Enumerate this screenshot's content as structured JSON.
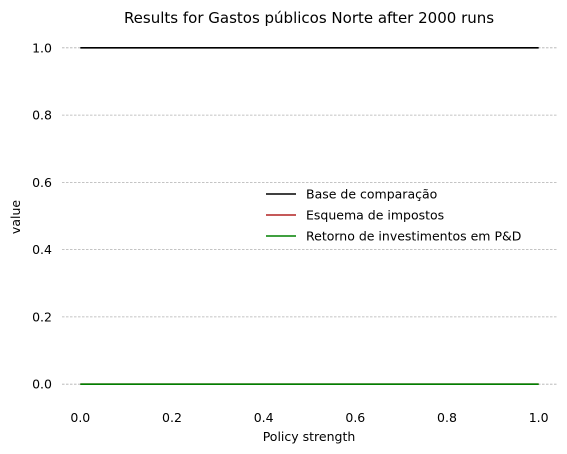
{
  "chart_data": {
    "type": "line",
    "title": "Results for Gastos públicos Norte after 2000 runs",
    "xlabel": "Policy strength",
    "ylabel": "value",
    "xlim": [
      -0.04,
      1.04
    ],
    "ylim": [
      -0.05,
      1.05
    ],
    "x_ticks": [
      0.0,
      0.2,
      0.4,
      0.6,
      0.8,
      1.0
    ],
    "x_tick_labels": [
      "0.0",
      "0.2",
      "0.4",
      "0.6",
      "0.8",
      "1.0"
    ],
    "y_ticks": [
      0.0,
      0.2,
      0.4,
      0.6,
      0.8,
      1.0
    ],
    "y_tick_labels": [
      "0.0",
      "0.2",
      "0.4",
      "0.6",
      "0.8",
      "1.0"
    ],
    "grid": "horizontal-dashed",
    "legend_position": "center-right",
    "x": [
      0.0,
      1.0
    ],
    "series": [
      {
        "name": "Base de comparação",
        "color": "#000000",
        "values": [
          1.0,
          1.0
        ]
      },
      {
        "name": "Esquema de impostos",
        "color": "#b22222",
        "values": [
          0.0,
          0.0
        ]
      },
      {
        "name": "Retorno de investimentos em P&D",
        "color": "#008000",
        "values": [
          0.0,
          0.0
        ]
      }
    ]
  }
}
